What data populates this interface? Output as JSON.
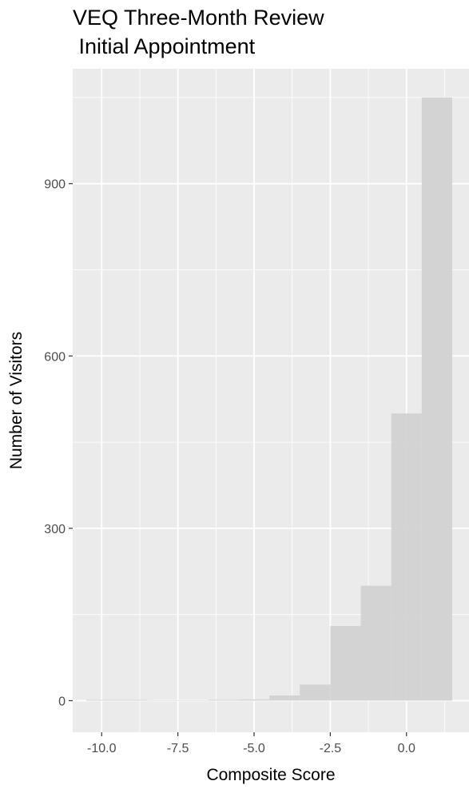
{
  "chart_data": {
    "type": "bar",
    "title": [
      "VEQ Three-Month Review",
      " Initial Appointment"
    ],
    "xlabel": "Composite Score",
    "ylabel": "Number of Visitors",
    "xlim": [
      -10.95,
      2.05
    ],
    "ylim": [
      -55,
      1100
    ],
    "x_ticks": [
      -10.0,
      -7.5,
      -5.0,
      -2.5,
      0.0
    ],
    "x_tick_labels": [
      "-10.0",
      "-7.5",
      "-5.0",
      "-2.5",
      "0.0"
    ],
    "y_ticks": [
      0,
      300,
      600,
      900
    ],
    "y_tick_labels": [
      "0",
      "300",
      "600",
      "900"
    ],
    "bin_width": 1,
    "bins": [
      {
        "x_start": -10.5,
        "x_end": -9.5,
        "count": 1
      },
      {
        "x_start": -9.5,
        "x_end": -8.5,
        "count": 1
      },
      {
        "x_start": -8.5,
        "x_end": -7.5,
        "count": 0
      },
      {
        "x_start": -7.5,
        "x_end": -6.5,
        "count": 0
      },
      {
        "x_start": -6.5,
        "x_end": -5.5,
        "count": 1
      },
      {
        "x_start": -5.5,
        "x_end": -4.5,
        "count": 2
      },
      {
        "x_start": -4.5,
        "x_end": -3.5,
        "count": 9
      },
      {
        "x_start": -3.5,
        "x_end": -2.5,
        "count": 28
      },
      {
        "x_start": -2.5,
        "x_end": -1.5,
        "count": 130
      },
      {
        "x_start": -1.5,
        "x_end": -0.5,
        "count": 200
      },
      {
        "x_start": -0.5,
        "x_end": 0.5,
        "count": 500
      },
      {
        "x_start": 0.5,
        "x_end": 1.5,
        "count": 1050
      }
    ],
    "grid": true,
    "bar_color": "#d2d2d2",
    "panel_background": "#ebebeb",
    "grid_color": "#ffffff"
  }
}
